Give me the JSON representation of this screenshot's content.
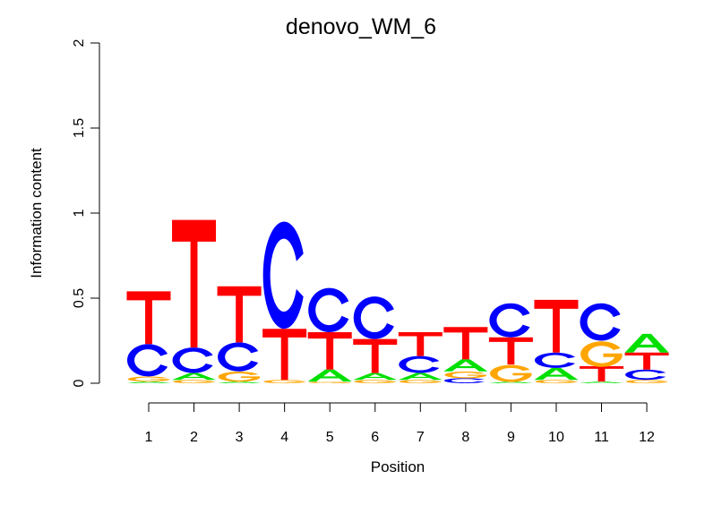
{
  "chart_data": {
    "type": "sequence-logo",
    "title": "denovo_WM_6",
    "xlabel": "Position",
    "ylabel": "Information content",
    "ylim": [
      0,
      2
    ],
    "yticks": [
      "0",
      "0.5",
      "1",
      "1.5",
      "2"
    ],
    "ytick_values": [
      0,
      0.5,
      1,
      1.5,
      2
    ],
    "categories": [
      "1",
      "2",
      "3",
      "4",
      "5",
      "6",
      "7",
      "8",
      "9",
      "10",
      "11",
      "12"
    ],
    "colors": {
      "A": "#00e000",
      "C": "#0000ff",
      "G": "#ffa500",
      "T": "#ff0000"
    },
    "stacks": [
      [
        [
          "A",
          0.01
        ],
        [
          "G",
          0.03
        ],
        [
          "C",
          0.19
        ],
        [
          "T",
          0.31
        ]
      ],
      [
        [
          "G",
          0.02
        ],
        [
          "A",
          0.04
        ],
        [
          "C",
          0.15
        ],
        [
          "T",
          0.75
        ]
      ],
      [
        [
          "A",
          0.01
        ],
        [
          "G",
          0.06
        ],
        [
          "C",
          0.17
        ],
        [
          "T",
          0.33
        ]
      ],
      [
        [
          "G",
          0.02
        ],
        [
          "T",
          0.3
        ],
        [
          "C",
          0.63
        ]
      ],
      [
        [
          "G",
          0.01
        ],
        [
          "A",
          0.07
        ],
        [
          "T",
          0.22
        ],
        [
          "C",
          0.26
        ]
      ],
      [
        [
          "G",
          0.02
        ],
        [
          "A",
          0.04
        ],
        [
          "T",
          0.2
        ],
        [
          "C",
          0.25
        ]
      ],
      [
        [
          "G",
          0.02
        ],
        [
          "A",
          0.04
        ],
        [
          "C",
          0.1
        ],
        [
          "T",
          0.14
        ]
      ],
      [
        [
          "C",
          0.03
        ],
        [
          "G",
          0.04
        ],
        [
          "A",
          0.07
        ],
        [
          "T",
          0.19
        ]
      ],
      [
        [
          "A",
          0.01
        ],
        [
          "G",
          0.1
        ],
        [
          "T",
          0.16
        ],
        [
          "C",
          0.2
        ]
      ],
      [
        [
          "G",
          0.02
        ],
        [
          "A",
          0.07
        ],
        [
          "C",
          0.09
        ],
        [
          "T",
          0.31
        ]
      ],
      [
        [
          "A",
          0.01
        ],
        [
          "T",
          0.09
        ],
        [
          "G",
          0.15
        ],
        [
          "C",
          0.22
        ]
      ],
      [
        [
          "G",
          0.02
        ],
        [
          "C",
          0.06
        ],
        [
          "T",
          0.1
        ],
        [
          "A",
          0.11
        ]
      ]
    ]
  }
}
